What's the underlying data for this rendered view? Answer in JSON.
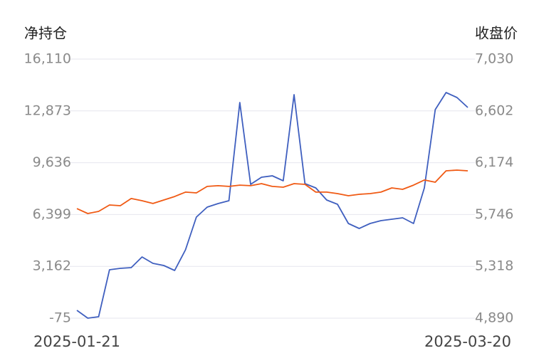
{
  "chart_data": {
    "type": "line",
    "y_label": "净持仓",
    "y2_label": "收盘价",
    "categories": [
      "2025-01-21",
      null,
      null,
      null,
      null,
      null,
      null,
      null,
      null,
      null,
      null,
      null,
      null,
      null,
      null,
      null,
      null,
      null,
      null,
      null,
      null,
      null,
      null,
      null,
      null,
      null,
      null,
      null,
      null,
      null,
      null,
      null,
      null,
      null,
      null,
      null,
      "2025-03-20"
    ],
    "series": [
      {
        "name": "净持仓",
        "color": "#3f5fbf",
        "axis": "y",
        "values": [
          414,
          -75,
          14,
          2949,
          3038,
          3082,
          3749,
          3349,
          3215,
          2904,
          4194,
          6239,
          6861,
          7084,
          7262,
          13398,
          8284,
          8729,
          8818,
          8507,
          13887,
          8329,
          8062,
          7306,
          7039,
          5839,
          5528,
          5839,
          6017,
          6106,
          6195,
          5839,
          8062,
          12953,
          14020,
          13709,
          13086
        ]
      },
      {
        "name": "收盘价",
        "color": "#f05a14",
        "axis": "y2",
        "values": [
          5795,
          5754,
          5772,
          5825,
          5819,
          5878,
          5860,
          5837,
          5866,
          5895,
          5931,
          5925,
          5978,
          5984,
          5978,
          5989,
          5984,
          6001,
          5978,
          5972,
          6001,
          5995,
          5931,
          5931,
          5919,
          5901,
          5913,
          5919,
          5931,
          5966,
          5954,
          5989,
          6031,
          6013,
          6107,
          6113,
          6107
        ]
      }
    ],
    "ylim": [
      -75,
      16110
    ],
    "yticks": [
      -75,
      {
        "value": 3162,
        "label": "3,162"
      },
      {
        "value": 6399,
        "label": "6,399"
      },
      {
        "value": 9636,
        "label": "9,636"
      },
      {
        "value": 12873,
        "label": "12,873"
      },
      {
        "value": 16110,
        "label": "16,110"
      }
    ],
    "y2lim": [
      4890,
      7030
    ],
    "y2ticks": [
      {
        "value": 4890,
        "label": "4,890"
      },
      {
        "value": 5318,
        "label": "5,318"
      },
      {
        "value": 5746,
        "label": "5,746"
      },
      {
        "value": 6174,
        "label": "6,174"
      },
      {
        "value": 6602,
        "label": "6,602"
      },
      {
        "value": 7030,
        "label": "7,030"
      }
    ],
    "grid": true
  }
}
